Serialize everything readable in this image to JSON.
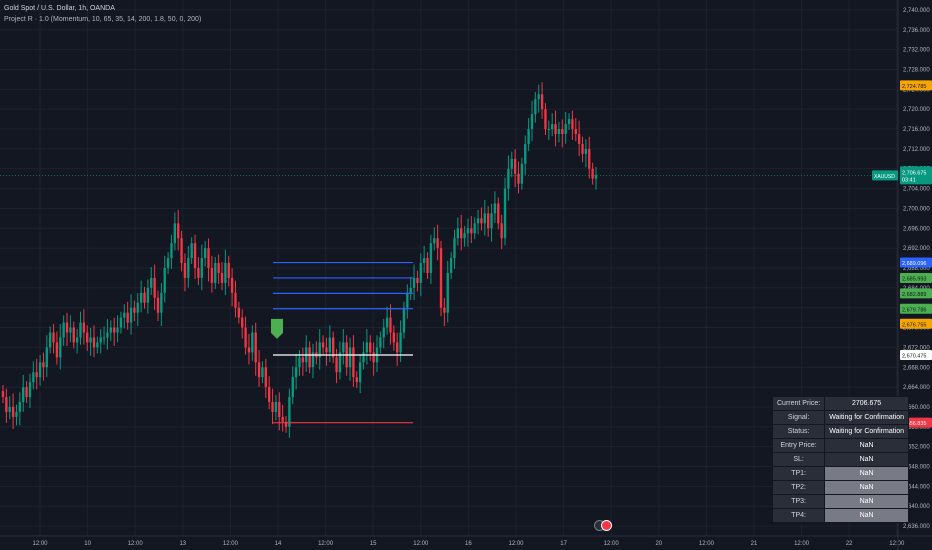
{
  "header": {
    "title": "Gold Spot / U.S. Dollar, 1h, OANDA",
    "indicator": "Project R · 1.0 (Momentum, 10, 65, 35, 14, 200, 1.8, 50, 0, 200)"
  },
  "colors": {
    "background": "#131722",
    "grid": "#1e222d",
    "up": "#089981",
    "down": "#f23645",
    "axis_text": "#b2b5be",
    "blue": "#2962ff",
    "green": "#4caf50",
    "orange": "#f7a600",
    "white": "#ffffff",
    "red": "#f23645"
  },
  "chart_data": {
    "type": "candlestick",
    "symbol": "XAUUSD",
    "timeframe": "1h",
    "ylim": [
      2634,
      2742
    ],
    "y_ticks": [
      "2,740.000",
      "2,736.000",
      "2,732.000",
      "2,728.000",
      "2,724.000",
      "2,720.000",
      "2,716.000",
      "2,712.000",
      "2,708.000",
      "2,704.000",
      "2,700.000",
      "2,696.000",
      "2,692.000",
      "2,688.000",
      "2,684.000",
      "2,680.000",
      "2,676.000",
      "2,672.000",
      "2,668.000",
      "2,664.000",
      "2,660.000",
      "2,656.000",
      "2,652.000",
      "2,648.000",
      "2,644.000",
      "2,640.000",
      "2,636.000"
    ],
    "x_ticks": [
      "12:00",
      "10",
      "12:00",
      "13",
      "12:00",
      "14",
      "12:00",
      "15",
      "12:00",
      "16",
      "12:00",
      "17",
      "12:00",
      "20",
      "12:00",
      "21",
      "12:00",
      "22",
      "12:00"
    ],
    "current_price": {
      "symbol": "XAUUSD",
      "value": "2,706.675",
      "countdown": "03:41"
    },
    "price_labels": [
      {
        "value": 2724.785,
        "text": "2,724.785",
        "color": "#f7a600"
      },
      {
        "value": 2689.096,
        "text": "2,689.096",
        "color": "#2962ff"
      },
      {
        "value": 2685.993,
        "text": "2,685.993",
        "color": "#4caf50"
      },
      {
        "value": 2682.889,
        "text": "2,682.889",
        "color": "#4caf50"
      },
      {
        "value": 2679.786,
        "text": "2,679.786",
        "color": "#4caf50"
      },
      {
        "value": 2676.755,
        "text": "2,676.755",
        "color": "#f7a600"
      },
      {
        "value": 2670.475,
        "text": "2,670.475",
        "color": "#ffffff"
      },
      {
        "value": 2656.835,
        "text": "2,656.835",
        "color": "#f23645"
      }
    ],
    "levels": [
      {
        "value": 2689.096,
        "color": "#2962ff",
        "from": 273,
        "to": 413
      },
      {
        "value": 2685.993,
        "color": "#2962ff",
        "from": 273,
        "to": 413
      },
      {
        "value": 2682.889,
        "color": "#2962ff",
        "from": 273,
        "to": 413
      },
      {
        "value": 2679.786,
        "color": "#2962ff",
        "from": 273,
        "to": 413
      },
      {
        "value": 2670.475,
        "color": "#ffffff",
        "from": 273,
        "to": 413
      },
      {
        "value": 2656.835,
        "color": "#f23645",
        "from": 273,
        "to": 413
      }
    ],
    "signal_marker": {
      "value": 2672.5,
      "x": 277,
      "color": "#4caf50"
    },
    "closes": [
      2662,
      2659,
      2660,
      2658,
      2659,
      2661,
      2664,
      2662,
      2665,
      2667,
      2666,
      2669,
      2668,
      2672,
      2675,
      2673,
      2670,
      2674,
      2677,
      2675,
      2676,
      2673,
      2674,
      2677,
      2675,
      2673,
      2674,
      2672,
      2673,
      2674,
      2674,
      2675,
      2676,
      2675,
      2676,
      2678,
      2679,
      2677,
      2680,
      2679,
      2681,
      2683,
      2681,
      2684,
      2686,
      2682,
      2679,
      2683,
      2688,
      2690,
      2693,
      2697,
      2694,
      2689,
      2686,
      2690,
      2693,
      2688,
      2686,
      2690,
      2692,
      2688,
      2685,
      2689,
      2687,
      2685,
      2689,
      2686,
      2683,
      2680,
      2678,
      2676,
      2672,
      2671,
      2675,
      2669,
      2666,
      2668,
      2664,
      2661,
      2659,
      2661,
      2658,
      2657,
      2656,
      2662,
      2666,
      2668,
      2670,
      2669,
      2672,
      2668,
      2671,
      2670,
      2673,
      2672,
      2671,
      2674,
      2670,
      2667,
      2671,
      2673,
      2668,
      2672,
      2666,
      2665,
      2669,
      2671,
      2673,
      2671,
      2669,
      2672,
      2674,
      2676,
      2678,
      2675,
      2673,
      2671,
      2675,
      2680,
      2683,
      2684,
      2686,
      2685,
      2689,
      2690,
      2687,
      2693,
      2694,
      2692,
      2680,
      2679,
      2687,
      2690,
      2694,
      2696,
      2694,
      2695,
      2696,
      2695,
      2697,
      2698,
      2697,
      2699,
      2696,
      2699,
      2701,
      2697,
      2694,
      2704,
      2708,
      2710,
      2707,
      2705,
      2709,
      2713,
      2716,
      2719,
      2722,
      2723,
      2720,
      2716,
      2716,
      2717,
      2715,
      2716,
      2715,
      2717,
      2718,
      2716,
      2715,
      2713,
      2711,
      2712,
      2708,
      2706,
      2706.675
    ],
    "table": {
      "rows": [
        {
          "label": "Current Price:",
          "value": "2706.675"
        },
        {
          "label": "Signal:",
          "value": "Waiting for Confirmation"
        },
        {
          "label": "Status:",
          "value": "Waiting for Confirmation"
        },
        {
          "label": "Entry Price:",
          "value": "NaN"
        },
        {
          "label": "SL:",
          "value": "NaN"
        },
        {
          "label": "TP1:",
          "value": "NaN"
        },
        {
          "label": "TP2:",
          "value": "NaN"
        },
        {
          "label": "TP3:",
          "value": "NaN"
        },
        {
          "label": "TP4:",
          "value": "NaN"
        }
      ]
    }
  }
}
